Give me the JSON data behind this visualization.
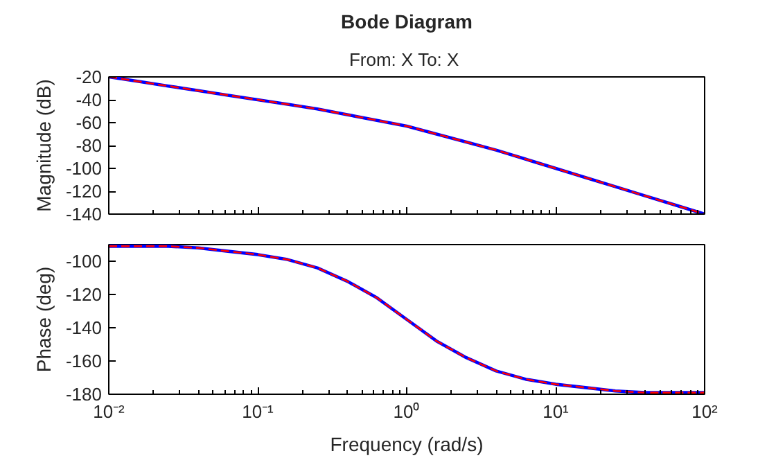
{
  "chart_data": [
    {
      "type": "line",
      "title": "Bode Diagram",
      "subtitle": "From: X  To: X",
      "ylabel": "Magnitude (dB)",
      "log": "x",
      "grid": false,
      "tick_labels": "y",
      "x": [
        0.01,
        0.01585,
        0.02512,
        0.03981,
        0.0631,
        0.1,
        0.1585,
        0.2512,
        0.3981,
        0.631,
        1,
        1.585,
        2.512,
        3.981,
        6.31,
        10,
        15.85,
        25.12,
        39.81,
        63.1,
        100
      ],
      "xlim": [
        0.01,
        100
      ],
      "xticks": [
        {
          "value": 0.01,
          "label": null
        },
        {
          "value": 0.1,
          "label": null
        },
        {
          "value": 1,
          "label": null
        },
        {
          "value": 10,
          "label": null
        },
        {
          "value": 100,
          "label": null
        }
      ],
      "ylim": [
        -140,
        -20
      ],
      "yticks": [
        -140,
        -120,
        -100,
        -80,
        -60,
        -40,
        -20
      ],
      "series": [
        {
          "color": "#0000ff",
          "line_style": "solid",
          "values": [
            -20,
            -24,
            -28,
            -32,
            -36,
            -40,
            -44,
            -48,
            -53,
            -58,
            -63,
            -70,
            -77,
            -84,
            -92,
            -100,
            -108,
            -116,
            -124,
            -132,
            -140
          ]
        },
        {
          "color": "#ff0000",
          "line_style": "dashed",
          "values": [
            -20,
            -24,
            -28,
            -32,
            -36,
            -40,
            -44,
            -48,
            -53,
            -58,
            -63,
            -70,
            -77,
            -84,
            -92,
            -100,
            -108,
            -116,
            -124,
            -132,
            -140
          ]
        }
      ]
    },
    {
      "type": "line",
      "xlabel": "Frequency (rad/s)",
      "ylabel": "Phase (deg)",
      "log": "x",
      "grid": false,
      "x": [
        0.01,
        0.01585,
        0.02512,
        0.03981,
        0.0631,
        0.1,
        0.1585,
        0.2512,
        0.3981,
        0.631,
        1,
        1.585,
        2.512,
        3.981,
        6.31,
        10,
        15.85,
        25.12,
        39.81,
        63.1,
        100
      ],
      "xlim": [
        0.01,
        100
      ],
      "xticks": [
        {
          "value": 0.01,
          "label": "10⁻²"
        },
        {
          "value": 0.1,
          "label": "10⁻¹"
        },
        {
          "value": 1,
          "label": "10⁰"
        },
        {
          "value": 10,
          "label": "10¹"
        },
        {
          "value": 100,
          "label": "10²"
        }
      ],
      "ylim": [
        -180,
        -90
      ],
      "yticks": [
        -180,
        -160,
        -140,
        -120,
        -100
      ],
      "series": [
        {
          "color": "#0000ff",
          "line_style": "solid",
          "values": [
            -91,
            -91,
            -91,
            -92,
            -94,
            -96,
            -99,
            -104,
            -112,
            -122,
            -135,
            -148,
            -158,
            -166,
            -171,
            -174,
            -176,
            -178,
            -179,
            -179,
            -179
          ]
        },
        {
          "color": "#ff0000",
          "line_style": "dashed",
          "values": [
            -91,
            -91,
            -91,
            -92,
            -94,
            -96,
            -99,
            -104,
            -112,
            -122,
            -135,
            -148,
            -158,
            -166,
            -171,
            -174,
            -176,
            -178,
            -179,
            -179,
            -179
          ]
        }
      ]
    }
  ]
}
